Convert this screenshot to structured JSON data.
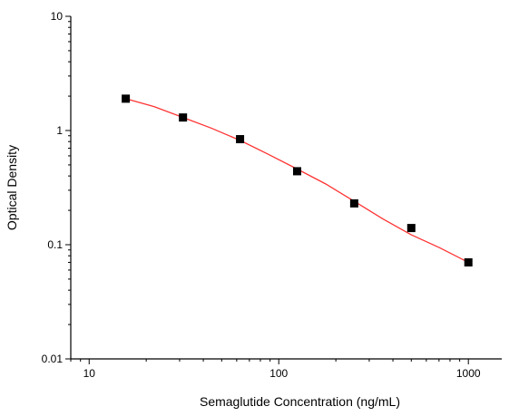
{
  "chart_data": {
    "type": "scatter",
    "xlabel": "Semaglutide Concentration (ng/mL)",
    "ylabel": "Optical Density",
    "xscale": "log",
    "yscale": "log",
    "xlim": [
      8,
      1500
    ],
    "ylim": [
      0.01,
      10
    ],
    "xticks": [
      10,
      100,
      1000
    ],
    "xtick_labels": [
      "10",
      "100",
      "1000"
    ],
    "yticks": [
      0.01,
      0.1,
      1,
      10
    ],
    "ytick_labels": [
      "0.01",
      "0.1",
      "1",
      "10"
    ],
    "grid": false,
    "legend": "none",
    "series": [
      {
        "x": [
          15.6,
          31.25,
          62.5,
          125,
          250,
          500,
          1000
        ],
        "y": [
          1.9,
          1.3,
          0.84,
          0.44,
          0.23,
          0.14,
          0.07
        ]
      }
    ],
    "fit_curve": {
      "x": [
        15.6,
        22,
        31.25,
        44,
        62.5,
        88,
        125,
        177,
        250,
        354,
        500,
        707,
        1000
      ],
      "y": [
        1.9,
        1.62,
        1.3,
        1.05,
        0.82,
        0.62,
        0.46,
        0.34,
        0.24,
        0.168,
        0.122,
        0.094,
        0.07
      ]
    },
    "marker_color": "#000000",
    "curve_color": "#ff3333",
    "axis_color": "#000000"
  }
}
